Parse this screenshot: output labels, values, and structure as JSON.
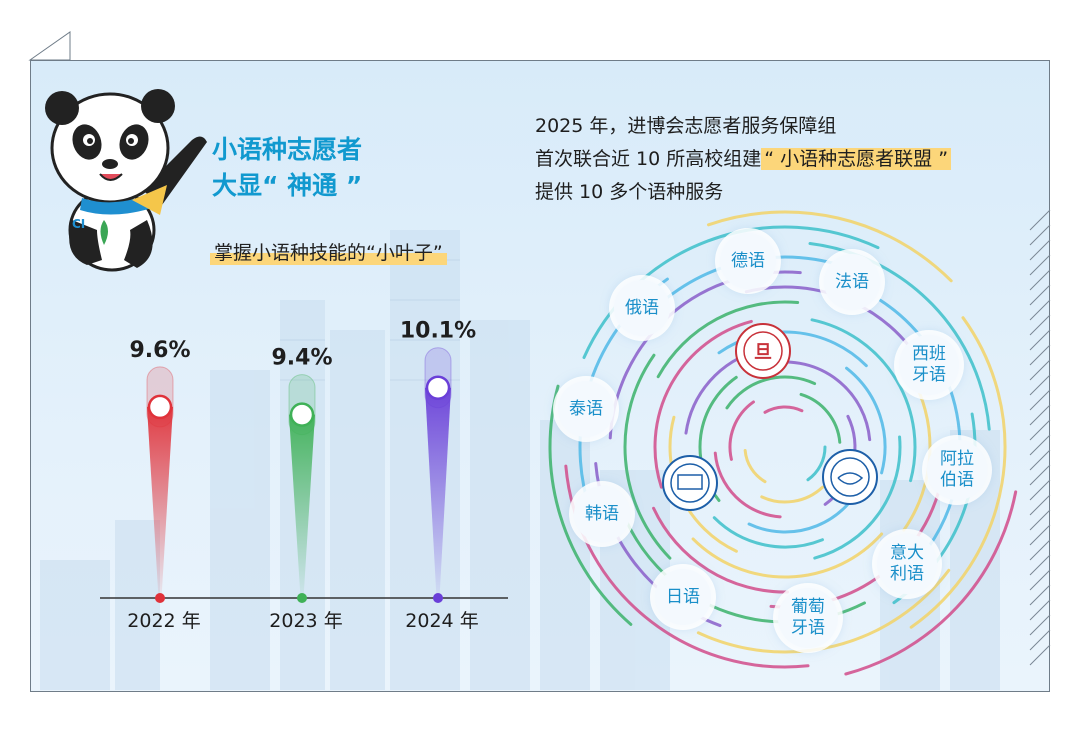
{
  "header": {
    "title_line1": "小语种志愿者",
    "title_line2": "大显“ 神通 ”",
    "subtitle": "掌握小语种技能的“小叶子”"
  },
  "intro": {
    "line1": "2025 年，进博会志愿者服务保障组",
    "line2_prefix": "首次联合近 10 所高校组建",
    "line2_highlight": "“ 小语种志愿者联盟 ”",
    "line3": "提供 10 多个语种服务"
  },
  "languages": [
    "德语",
    "法语",
    "俄语",
    "西班牙语",
    "泰语",
    "阿拉伯语",
    "韩语",
    "意大利语",
    "日语",
    "葡萄牙语"
  ],
  "logos": [
    "fudan-university-seal",
    "shanghai-international-studies-university-seal",
    "tongji-university-seal"
  ],
  "chart_data": {
    "type": "bar",
    "categories": [
      "2022 年",
      "2023 年",
      "2024 年"
    ],
    "values": [
      9.6,
      9.4,
      10.1
    ],
    "value_labels": [
      "9.6%",
      "9.4%",
      "10.1%"
    ],
    "colors": [
      "#e0323a",
      "#3fb157",
      "#6a3fd8"
    ],
    "title": "",
    "xlabel": "",
    "ylabel": ""
  },
  "colors": {
    "accent_blue": "#1199cf",
    "highlight_yellow": "#fcd67a",
    "panel_bg": "#d8ebf9"
  }
}
